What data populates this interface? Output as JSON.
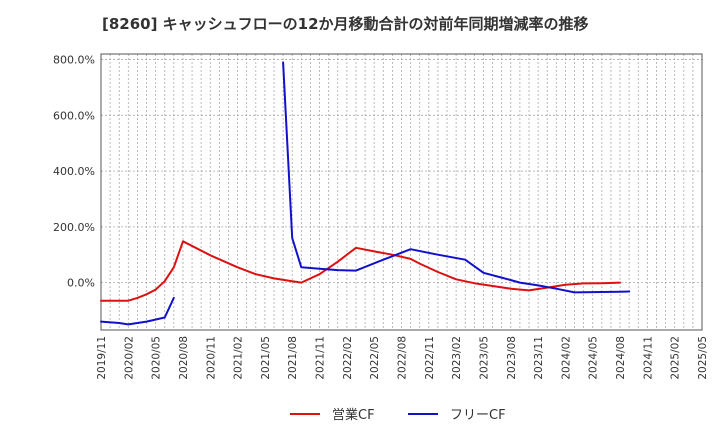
{
  "chart_data": {
    "type": "line",
    "title": "[8260]  キャッシュフローの12か月移動合計の対前年同期増減率の推移",
    "xlabel": "",
    "ylabel": "",
    "ylim": [
      -170,
      820
    ],
    "yticks": [
      0,
      200,
      400,
      600,
      800
    ],
    "ytick_labels": [
      "0.0%",
      "200.0%",
      "400.0%",
      "600.0%",
      "800.0%"
    ],
    "x_start": "2019/11",
    "x_end": "2025/05",
    "xtick_labels": [
      "2019/11",
      "2020/02",
      "2020/05",
      "2020/08",
      "2020/11",
      "2021/02",
      "2021/05",
      "2021/08",
      "2021/11",
      "2022/02",
      "2022/05",
      "2022/08",
      "2022/11",
      "2023/02",
      "2023/05",
      "2023/08",
      "2023/11",
      "2024/02",
      "2024/05",
      "2024/08",
      "2024/11",
      "2025/02",
      "2025/05"
    ],
    "grid": true,
    "legend_position": "bottom-center",
    "series": [
      {
        "name": "営業CF",
        "color": "#dd1111",
        "points": [
          [
            "2019/11",
            -65
          ],
          [
            "2019/12",
            -65
          ],
          [
            "2020/01",
            -65
          ],
          [
            "2020/02",
            -65
          ],
          [
            "2020/03",
            -55
          ],
          [
            "2020/04",
            -42
          ],
          [
            "2020/05",
            -25
          ],
          [
            "2020/06",
            5
          ],
          [
            "2020/07",
            55
          ],
          [
            "2020/08",
            148
          ],
          [
            "2020/11",
            98
          ],
          [
            "2021/02",
            55
          ],
          [
            "2021/04",
            30
          ],
          [
            "2021/06",
            15
          ],
          [
            "2021/08",
            5
          ],
          [
            "2021/09",
            0
          ],
          [
            "2021/11",
            30
          ],
          [
            "2022/01",
            75
          ],
          [
            "2022/02",
            100
          ],
          [
            "2022/03",
            125
          ],
          [
            "2022/05",
            112
          ],
          [
            "2022/07",
            100
          ],
          [
            "2022/09",
            85
          ],
          [
            "2022/10",
            68
          ],
          [
            "2022/12",
            38
          ],
          [
            "2023/02",
            12
          ],
          [
            "2023/04",
            -2
          ],
          [
            "2023/06",
            -12
          ],
          [
            "2023/08",
            -22
          ],
          [
            "2023/10",
            -28
          ],
          [
            "2023/12",
            -18
          ],
          [
            "2024/02",
            -8
          ],
          [
            "2024/04",
            -3
          ],
          [
            "2024/06",
            -2
          ],
          [
            "2024/08",
            0
          ]
        ]
      },
      {
        "name": "フリーCF",
        "color": "#1111cc",
        "segments": [
          [
            [
              "2019/11",
              -140
            ],
            [
              "2020/01",
              -145
            ],
            [
              "2020/02",
              -150
            ],
            [
              "2020/04",
              -140
            ],
            [
              "2020/06",
              -125
            ],
            [
              "2020/07",
              -55
            ]
          ],
          [
            [
              "2021/07",
              790
            ],
            [
              "2021/08",
              160
            ],
            [
              "2021/09",
              55
            ],
            [
              "2021/11",
              50
            ],
            [
              "2022/01",
              45
            ],
            [
              "2022/03",
              43
            ],
            [
              "2022/06",
              82
            ],
            [
              "2022/09",
              120
            ],
            [
              "2022/12",
              100
            ],
            [
              "2023/03",
              82
            ],
            [
              "2023/05",
              35
            ],
            [
              "2023/07",
              18
            ],
            [
              "2023/09",
              0
            ],
            [
              "2023/11",
              -10
            ],
            [
              "2024/01",
              -22
            ],
            [
              "2024/03",
              -35
            ],
            [
              "2024/08",
              -33
            ],
            [
              "2024/09",
              -32
            ]
          ]
        ]
      }
    ]
  }
}
